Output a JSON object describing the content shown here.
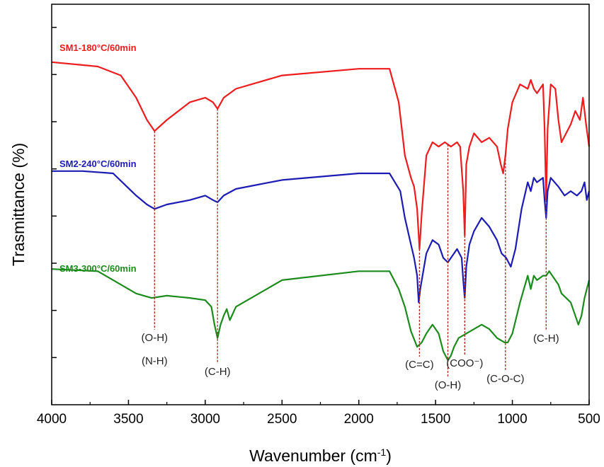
{
  "chart_data": {
    "type": "line",
    "xlabel": "Wavenumber (cm",
    "xlabel_sup": "-1",
    "xlabel_close": ")",
    "ylabel": "Trasmittance (%)",
    "xlim": [
      4000,
      500
    ],
    "x_reversed": true,
    "x_ticks": [
      4000,
      3500,
      3000,
      2500,
      2000,
      1500,
      1000,
      500
    ],
    "x_tick_labels": [
      "4000",
      "3500",
      "3000",
      "2500",
      "2000",
      "1500",
      "1000",
      "500"
    ],
    "y_tick_count": 8,
    "y_tick_labels_shown": false,
    "grid": false,
    "legend": "inline labels above each curve",
    "series": [
      {
        "name": "SM1-180°C/60min",
        "color": "#ee1c1c",
        "x": [
          4000,
          3700,
          3550,
          3450,
          3380,
          3330,
          3250,
          3100,
          3000,
          2950,
          2920,
          2880,
          2800,
          2500,
          2000,
          1800,
          1740,
          1700,
          1660,
          1640,
          1620,
          1605,
          1590,
          1560,
          1520,
          1480,
          1440,
          1400,
          1360,
          1340,
          1320,
          1310,
          1300,
          1280,
          1250,
          1200,
          1150,
          1100,
          1075,
          1060,
          1045,
          1030,
          1000,
          950,
          900,
          880,
          860,
          840,
          800,
          790,
          780,
          770,
          750,
          720,
          700,
          680,
          650,
          620,
          590,
          560,
          540,
          520,
          500
        ],
        "y": [
          97,
          96,
          94,
          89,
          84,
          81.5,
          84,
          88,
          89,
          88,
          86.5,
          89,
          91,
          94,
          95.5,
          95.5,
          88,
          76,
          71,
          69,
          64,
          55,
          63,
          76,
          79,
          78,
          79,
          78,
          79,
          78,
          68,
          58,
          74,
          78,
          81,
          79,
          80,
          78,
          74,
          72,
          76,
          82,
          88,
          92,
          91,
          93,
          91,
          90,
          92,
          82,
          66,
          82,
          92,
          91,
          84,
          79,
          81,
          83,
          86,
          84,
          89,
          83,
          78
        ]
      },
      {
        "name": "SM2-240°C/60min",
        "color": "#1c1cb4",
        "x": [
          4000,
          3800,
          3600,
          3450,
          3380,
          3330,
          3250,
          3100,
          3000,
          2950,
          2920,
          2880,
          2800,
          2500,
          2000,
          1800,
          1730,
          1700,
          1660,
          1640,
          1620,
          1610,
          1600,
          1560,
          1520,
          1480,
          1450,
          1420,
          1400,
          1360,
          1330,
          1320,
          1310,
          1300,
          1280,
          1250,
          1200,
          1150,
          1100,
          1070,
          1040,
          1010,
          980,
          940,
          900,
          880,
          860,
          840,
          800,
          790,
          780,
          770,
          750,
          700,
          660,
          620,
          580,
          550,
          530,
          515,
          500
        ],
        "y": [
          72.5,
          72.5,
          72,
          67,
          65,
          64,
          65,
          66,
          67,
          66,
          65.5,
          67,
          68.5,
          70.5,
          72,
          72,
          68,
          62,
          56,
          53,
          49,
          43,
          46,
          54,
          57,
          56,
          53,
          52,
          53,
          55,
          53,
          48,
          44,
          51,
          56,
          59,
          62,
          60,
          57,
          54,
          53,
          51,
          55,
          64,
          70,
          68,
          71,
          70,
          71,
          66,
          62,
          68,
          71,
          69,
          67,
          68,
          67,
          68,
          70,
          66,
          68
        ]
      },
      {
        "name": "SM3-300°C/60min",
        "color": "#1b8c1b",
        "x": [
          4000,
          3700,
          3550,
          3450,
          3350,
          3250,
          3100,
          3000,
          2960,
          2940,
          2920,
          2900,
          2880,
          2860,
          2840,
          2800,
          2500,
          2000,
          1800,
          1740,
          1700,
          1660,
          1620,
          1590,
          1560,
          1520,
          1480,
          1450,
          1420,
          1400,
          1380,
          1350,
          1300,
          1250,
          1200,
          1150,
          1100,
          1050,
          1030,
          1000,
          950,
          900,
          880,
          860,
          840,
          800,
          780,
          760,
          740,
          700,
          680,
          650,
          620,
          590,
          570,
          550,
          530,
          500
        ],
        "y": [
          50.5,
          50,
          47,
          45,
          44,
          44.5,
          44,
          43.5,
          42,
          38,
          35,
          38,
          40,
          41.5,
          39,
          42,
          48,
          50,
          50,
          46,
          42,
          36.5,
          33,
          34,
          36,
          38,
          36,
          32,
          30,
          31,
          33,
          35,
          36,
          37,
          38,
          37,
          35,
          34,
          34,
          36,
          43,
          49,
          46,
          49,
          48,
          49,
          49,
          50,
          49,
          47,
          45,
          44,
          43,
          40,
          38,
          40,
          44,
          48
        ]
      }
    ],
    "annotations": [
      {
        "lines": [
          "(O-H)",
          "(N-H)"
        ],
        "x": 3330,
        "series_top": "SM1-180°C/60min"
      },
      {
        "lines": [
          "(C-H)"
        ],
        "x": 2920,
        "series_top": "SM1-180°C/60min"
      },
      {
        "lines": [
          "(C=C)"
        ],
        "x": 1605,
        "series_top": "SM1-180°C/60min"
      },
      {
        "lines": [
          "(O-H)"
        ],
        "x": 1420,
        "series_top": "SM1-180°C/60min"
      },
      {
        "lines": [
          "(COO⁻)"
        ],
        "x": 1310,
        "series_top": "SM1-180°C/60min"
      },
      {
        "lines": [
          "(C-O-C)"
        ],
        "x": 1045,
        "series_top": "SM1-180°C/60min"
      },
      {
        "lines": [
          "(C-H)"
        ],
        "x": 780,
        "series_top": "SM1-180°C/60min"
      }
    ],
    "annotation_line_color": "#a0281e"
  }
}
